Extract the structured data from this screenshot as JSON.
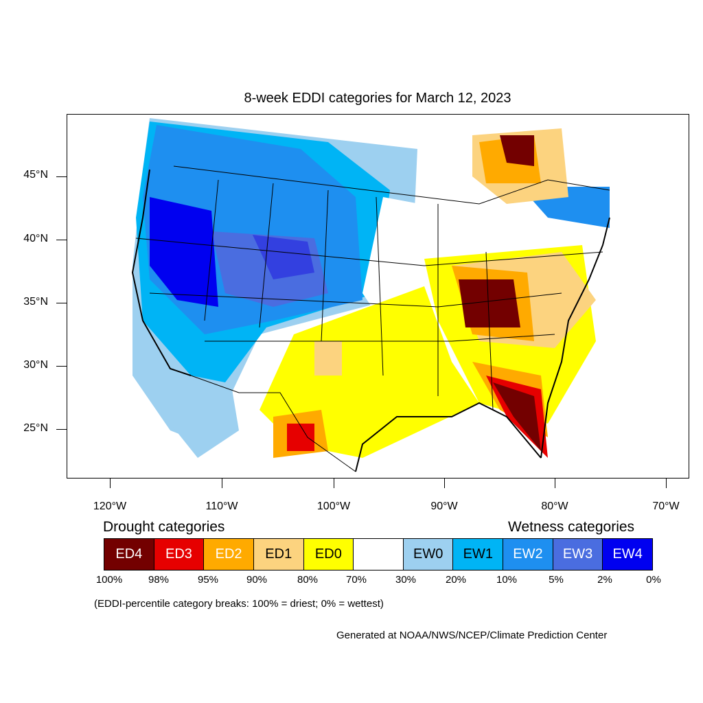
{
  "title": "8-week EDDI categories for March 12, 2023",
  "axes": {
    "lat_labels": [
      "45°N",
      "40°N",
      "35°N",
      "30°N",
      "25°N"
    ],
    "lon_labels": [
      "120°W",
      "110°W",
      "100°W",
      "90°W",
      "80°W",
      "70°W"
    ]
  },
  "legend": {
    "drought_heading": "Drought categories",
    "wetness_heading": "Wetness categories",
    "categories": [
      {
        "label": "ED4",
        "color": "#730000",
        "text_color": "#ffffff"
      },
      {
        "label": "ED3",
        "color": "#e60000",
        "text_color": "#ffffff"
      },
      {
        "label": "ED2",
        "color": "#ffaa00",
        "text_color": "#ffffff"
      },
      {
        "label": "ED1",
        "color": "#fcd37f",
        "text_color": "#000000"
      },
      {
        "label": "ED0",
        "color": "#ffff00",
        "text_color": "#000000"
      },
      {
        "label": "",
        "color": "#ffffff",
        "text_color": "#000000"
      },
      {
        "label": "EW0",
        "color": "#9dd0f0",
        "text_color": "#000000"
      },
      {
        "label": "EW1",
        "color": "#00b4f5",
        "text_color": "#000000"
      },
      {
        "label": "EW2",
        "color": "#1e8ff0",
        "text_color": "#ffffff"
      },
      {
        "label": "EW3",
        "color": "#4a6de0",
        "text_color": "#ffffff"
      },
      {
        "label": "EW4",
        "color": "#0000f0",
        "text_color": "#ffffff"
      }
    ],
    "percentiles": [
      "100%",
      "98%",
      "95%",
      "90%",
      "80%",
      "70%",
      "30%",
      "20%",
      "10%",
      "5%",
      "2%",
      "0%"
    ]
  },
  "note": "(EDDI-percentile category breaks: 100% = driest; 0% = wettest)",
  "credit": "Generated at NOAA/NWS/NCEP/Climate Prediction Center"
}
